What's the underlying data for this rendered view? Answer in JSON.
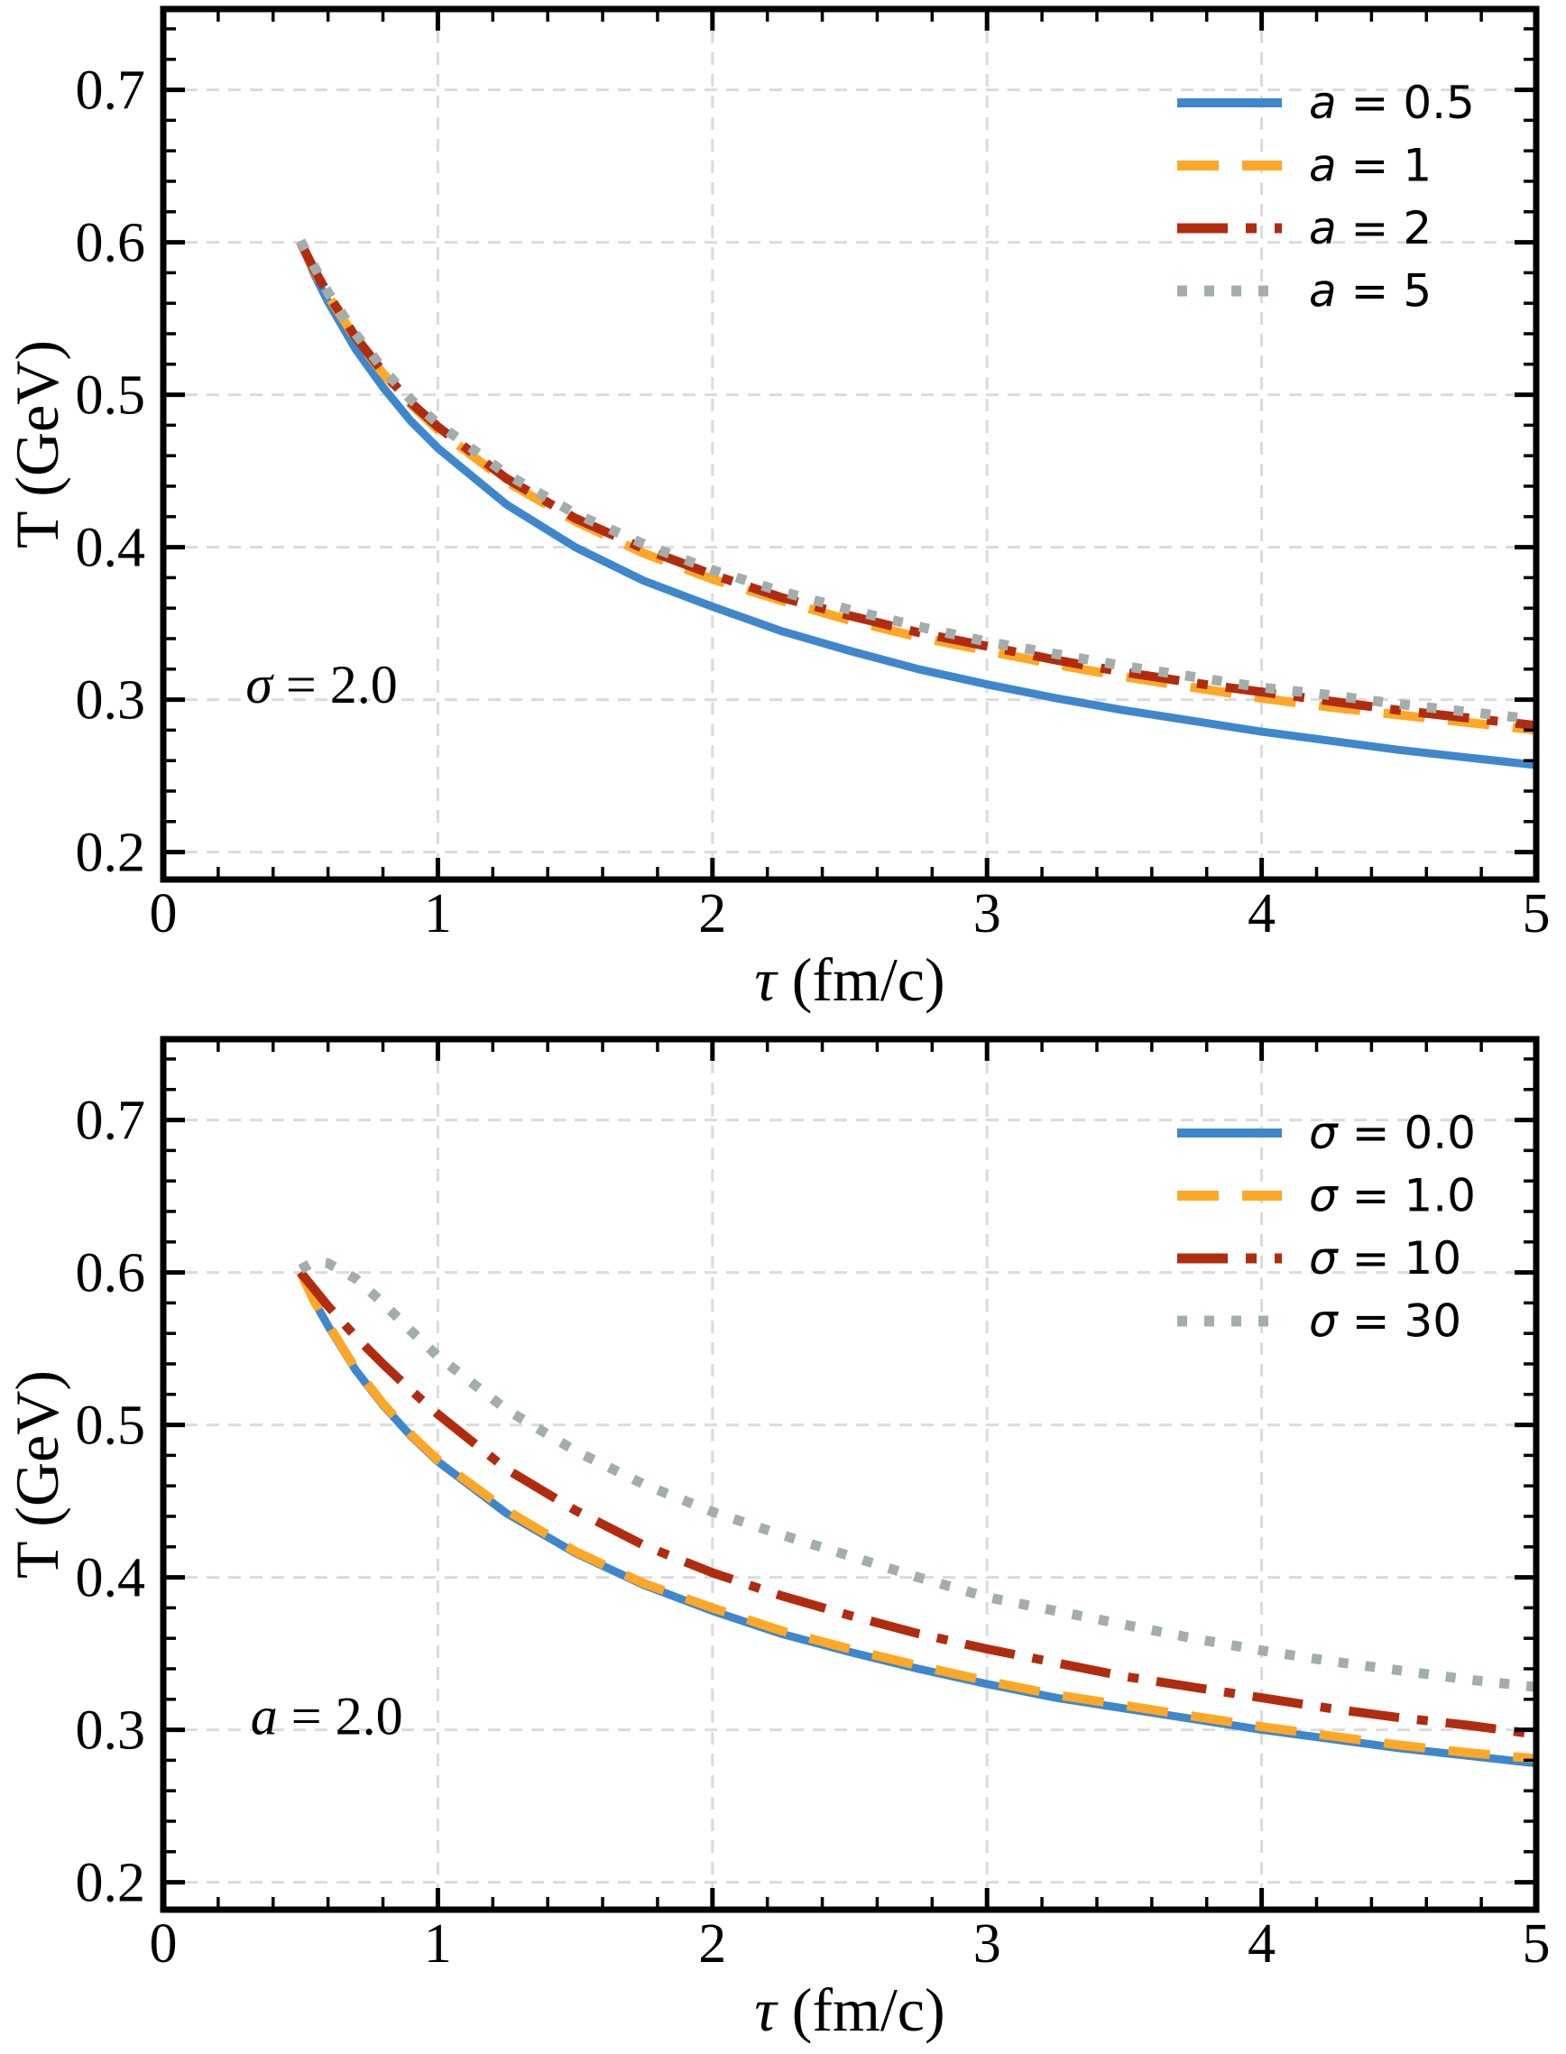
{
  "figure": {
    "background": "#ffffff",
    "frame_color": "#000000",
    "grid_color": "#dbdbdb",
    "text_color": "#000000"
  },
  "chart_data": [
    {
      "type": "line",
      "panel": "top",
      "xlabel": "τ (fm/c)",
      "ylabel": "T (GeV)",
      "xlim": [
        0,
        5
      ],
      "ylim": [
        0.182,
        0.753
      ],
      "x_major_ticks": [
        0,
        1,
        2,
        3,
        4,
        5
      ],
      "x_tick_labels": [
        "0",
        "1",
        "2",
        "3",
        "4",
        "5"
      ],
      "x_minor_step": 0.2,
      "y_major_ticks": [
        0.2,
        0.3,
        0.4,
        0.5,
        0.6,
        0.7
      ],
      "y_tick_labels": [
        "0.2",
        "0.3",
        "0.4",
        "0.5",
        "0.6",
        "0.7"
      ],
      "y_minor_step": 0.02,
      "grid": "dashed",
      "legend_position": "upper-right",
      "annotation": {
        "text": "σ = 2.0",
        "x": 0.3,
        "y": 0.298
      },
      "x": [
        0.5,
        0.55,
        0.6,
        0.7,
        0.8,
        0.9,
        1.0,
        1.25,
        1.5,
        1.75,
        2.0,
        2.25,
        2.5,
        2.75,
        3.0,
        3.25,
        3.5,
        3.75,
        4.0,
        4.25,
        4.5,
        4.75,
        5.0
      ],
      "series": [
        {
          "label": "a = 0.5",
          "color": "#3E87CD",
          "style": "solid",
          "y": [
            0.6,
            0.579,
            0.561,
            0.53,
            0.505,
            0.483,
            0.465,
            0.428,
            0.4,
            0.378,
            0.361,
            0.345,
            0.332,
            0.32,
            0.31,
            0.301,
            0.293,
            0.286,
            0.279,
            0.273,
            0.267,
            0.262,
            0.257
          ]
        },
        {
          "label": "a = 1",
          "color": "#FFA726",
          "style": "dashed",
          "y": [
            0.6,
            0.581,
            0.565,
            0.537,
            0.514,
            0.494,
            0.477,
            0.443,
            0.417,
            0.396,
            0.379,
            0.365,
            0.352,
            0.341,
            0.332,
            0.323,
            0.315,
            0.308,
            0.301,
            0.295,
            0.29,
            0.285,
            0.28
          ]
        },
        {
          "label": "a = 2",
          "color": "#B12C0F",
          "style": "dashdot",
          "y": [
            0.6,
            0.582,
            0.566,
            0.538,
            0.515,
            0.495,
            0.479,
            0.445,
            0.419,
            0.399,
            0.382,
            0.367,
            0.355,
            0.344,
            0.335,
            0.326,
            0.318,
            0.311,
            0.305,
            0.299,
            0.293,
            0.288,
            0.283
          ]
        },
        {
          "label": "a = 5",
          "color": "#A3ADAC",
          "style": "dotted",
          "y": [
            0.601,
            0.584,
            0.567,
            0.54,
            0.517,
            0.497,
            0.481,
            0.448,
            0.422,
            0.402,
            0.385,
            0.371,
            0.359,
            0.348,
            0.338,
            0.33,
            0.322,
            0.315,
            0.308,
            0.303,
            0.297,
            0.292,
            0.287
          ]
        }
      ]
    },
    {
      "type": "line",
      "panel": "bottom",
      "xlabel": "τ (fm/c)",
      "ylabel": "T (GeV)",
      "xlim": [
        0,
        5
      ],
      "ylim": [
        0.182,
        0.753
      ],
      "x_major_ticks": [
        0,
        1,
        2,
        3,
        4,
        5
      ],
      "x_tick_labels": [
        "0",
        "1",
        "2",
        "3",
        "4",
        "5"
      ],
      "x_minor_step": 0.2,
      "y_major_ticks": [
        0.2,
        0.3,
        0.4,
        0.5,
        0.6,
        0.7
      ],
      "y_tick_labels": [
        "0.2",
        "0.3",
        "0.4",
        "0.5",
        "0.6",
        "0.7"
      ],
      "y_minor_step": 0.02,
      "grid": "dashed",
      "legend_position": "upper-right",
      "annotation": {
        "text": "a = 2.0",
        "x": 0.318,
        "y": 0.297
      },
      "x": [
        0.5,
        0.55,
        0.6,
        0.7,
        0.8,
        0.9,
        1.0,
        1.25,
        1.5,
        1.75,
        2.0,
        2.25,
        2.5,
        2.75,
        3.0,
        3.25,
        3.5,
        3.75,
        4.0,
        4.25,
        4.5,
        4.75,
        5.0
      ],
      "series": [
        {
          "label": "σ = 0.0",
          "color": "#3E87CD",
          "style": "solid",
          "y": [
            0.6,
            0.581,
            0.565,
            0.536,
            0.513,
            0.493,
            0.476,
            0.442,
            0.416,
            0.395,
            0.378,
            0.363,
            0.351,
            0.34,
            0.33,
            0.321,
            0.314,
            0.307,
            0.3,
            0.294,
            0.288,
            0.283,
            0.278
          ]
        },
        {
          "label": "σ = 1.0",
          "color": "#FFA726",
          "style": "dashed",
          "y": [
            0.6,
            0.581,
            0.566,
            0.537,
            0.514,
            0.494,
            0.477,
            0.444,
            0.417,
            0.396,
            0.38,
            0.365,
            0.353,
            0.342,
            0.332,
            0.323,
            0.316,
            0.309,
            0.302,
            0.296,
            0.29,
            0.285,
            0.281
          ]
        },
        {
          "label": "σ = 10",
          "color": "#B12C0F",
          "style": "dashdot",
          "y": [
            0.6,
            0.589,
            0.578,
            0.558,
            0.54,
            0.523,
            0.507,
            0.471,
            0.444,
            0.421,
            0.403,
            0.388,
            0.375,
            0.363,
            0.353,
            0.344,
            0.335,
            0.328,
            0.321,
            0.314,
            0.308,
            0.303,
            0.297
          ]
        },
        {
          "label": "σ = 30",
          "color": "#A3ADAC",
          "style": "dotted",
          "y": [
            0.602,
            0.607,
            0.606,
            0.596,
            0.58,
            0.562,
            0.545,
            0.51,
            0.483,
            0.461,
            0.443,
            0.428,
            0.414,
            0.4,
            0.387,
            0.378,
            0.369,
            0.36,
            0.352,
            0.345,
            0.339,
            0.333,
            0.328
          ]
        }
      ]
    }
  ]
}
